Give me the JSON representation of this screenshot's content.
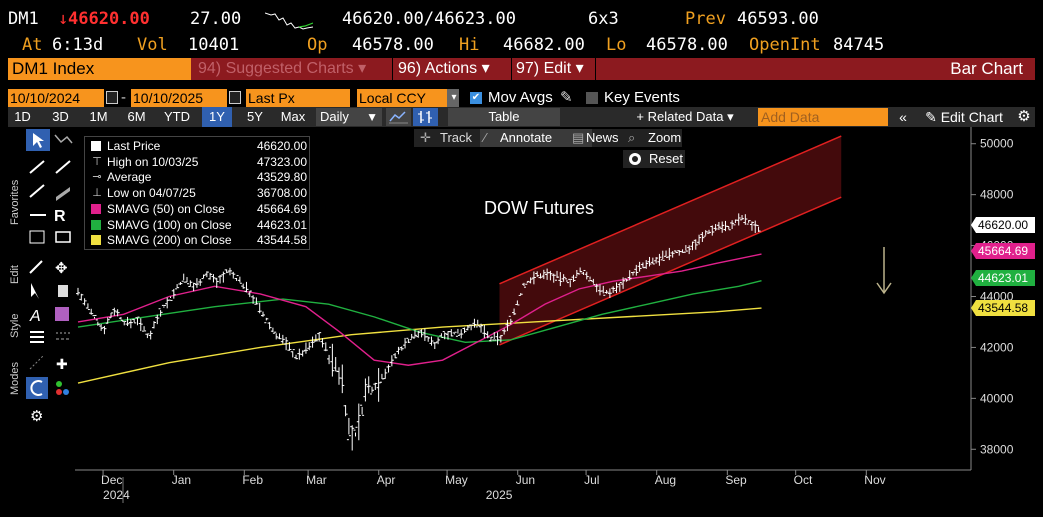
{
  "quote": {
    "ticker": "DM1",
    "last": "46620.00",
    "change": "27.00",
    "bid_ask": "46620.00/46623.00",
    "size": "6x3",
    "prev_label": "Prev",
    "prev": "46593.00",
    "at_label": "At",
    "time": "6:13d",
    "vol_label": "Vol",
    "vol": "10401",
    "op_label": "Op",
    "open": "46578.00",
    "hi_label": "Hi",
    "high": "46682.00",
    "lo_label": "Lo",
    "low": "46578.00",
    "oi_label": "OpenInt",
    "open_int": "84745"
  },
  "titlebar": {
    "security": "DM1 Index",
    "suggested": "94) Suggested Charts",
    "actions": "96) Actions",
    "edit": "97) Edit",
    "chart_type": "Bar Chart"
  },
  "range": {
    "start": "10/10/2024",
    "end": "10/10/2025",
    "field": "Last Px",
    "currency": "Local CCY",
    "mov_avgs": "Mov Avgs",
    "key_events": "Key Events"
  },
  "toolbar": {
    "periods": [
      "1D",
      "3D",
      "1M",
      "6M",
      "YTD",
      "1Y",
      "5Y",
      "Max"
    ],
    "selected_period": "1Y",
    "frequency": "Daily",
    "table": "Table",
    "related": "Related Data",
    "add_data_placeholder": "Add Data",
    "edit_chart": "Edit Chart"
  },
  "chart_tools": {
    "track": "Track",
    "annotate": "Annotate",
    "news": "News",
    "zoom": "Zoom",
    "reset": "Reset"
  },
  "side_tabs": {
    "favorites": "Favorites",
    "edit": "Edit",
    "style": "Style",
    "modes": "Modes"
  },
  "legend": [
    {
      "name": "Last Price",
      "value": "46620.00",
      "color": "#ffffff",
      "kind": "box"
    },
    {
      "name": "High on 10/03/25",
      "value": "47323.00",
      "color": "#cccccc",
      "kind": "high"
    },
    {
      "name": "Average",
      "value": "43529.80",
      "color": "#cccccc",
      "kind": "avg"
    },
    {
      "name": "Low on 04/07/25",
      "value": "36708.00",
      "color": "#cccccc",
      "kind": "low"
    },
    {
      "name": "SMAVG (50)  on Close",
      "value": "45664.69",
      "color": "#e0208c",
      "kind": "box"
    },
    {
      "name": "SMAVG (100)  on Close",
      "value": "44623.01",
      "color": "#20b040",
      "kind": "box"
    },
    {
      "name": "SMAVG (200)  on Close",
      "value": "43544.58",
      "color": "#f0e040",
      "kind": "box"
    }
  ],
  "chart_data": {
    "type": "line",
    "annotation": "DOW Futures",
    "ylim": [
      37500,
      50500
    ],
    "y_ticks": [
      "50000",
      "48000",
      "46000",
      "44000",
      "42000",
      "40000",
      "38000"
    ],
    "x_ticks": [
      "Dec",
      "Jan",
      "Feb",
      "Mar",
      "Apr",
      "May",
      "Jun",
      "Jul",
      "Aug",
      "Sep",
      "Oct",
      "Nov"
    ],
    "x_year_labels": [
      "2024",
      "2025"
    ],
    "price_tags": [
      {
        "value": "46620.00",
        "color": "#ffffff",
        "text_color": "#000000"
      },
      {
        "value": "45664.69",
        "color": "#e0208c",
        "text_color": "#ffffff"
      },
      {
        "value": "44623.01",
        "color": "#20b040",
        "text_color": "#ffffff"
      },
      {
        "value": "43544.58",
        "color": "#f0e040",
        "text_color": "#000000"
      }
    ],
    "price": [
      [
        0,
        44200
      ],
      [
        6,
        43300
      ],
      [
        11,
        42700
      ],
      [
        16,
        43500
      ],
      [
        21,
        42900
      ],
      [
        26,
        43100
      ],
      [
        31,
        42400
      ],
      [
        36,
        43400
      ],
      [
        41,
        44000
      ],
      [
        46,
        44700
      ],
      [
        51,
        44400
      ],
      [
        56,
        44900
      ],
      [
        61,
        44600
      ],
      [
        66,
        45000
      ],
      [
        71,
        44600
      ],
      [
        76,
        44100
      ],
      [
        81,
        43300
      ],
      [
        86,
        42600
      ],
      [
        91,
        42200
      ],
      [
        96,
        41600
      ],
      [
        101,
        42000
      ],
      [
        106,
        42500
      ],
      [
        111,
        41500
      ],
      [
        116,
        40800
      ],
      [
        119,
        38600
      ],
      [
        122,
        38500
      ],
      [
        126,
        40200
      ],
      [
        131,
        40600
      ],
      [
        136,
        41200
      ],
      [
        141,
        41900
      ],
      [
        146,
        42400
      ],
      [
        151,
        42600
      ],
      [
        156,
        42100
      ],
      [
        161,
        42600
      ],
      [
        166,
        42500
      ],
      [
        171,
        42800
      ],
      [
        176,
        42900
      ],
      [
        181,
        42300
      ],
      [
        186,
        42400
      ],
      [
        191,
        43300
      ],
      [
        196,
        44500
      ],
      [
        201,
        44800
      ],
      [
        206,
        44900
      ],
      [
        211,
        44700
      ],
      [
        216,
        44600
      ],
      [
        221,
        45000
      ],
      [
        226,
        44600
      ],
      [
        231,
        44100
      ],
      [
        236,
        44300
      ],
      [
        241,
        44700
      ],
      [
        246,
        45100
      ],
      [
        251,
        45300
      ],
      [
        256,
        45500
      ],
      [
        261,
        45700
      ],
      [
        266,
        45800
      ],
      [
        271,
        46100
      ],
      [
        276,
        46500
      ],
      [
        281,
        46800
      ],
      [
        286,
        46700
      ],
      [
        291,
        47100
      ],
      [
        296,
        46800
      ],
      [
        300,
        46620
      ]
    ],
    "sma50": [
      [
        0,
        43000
      ],
      [
        20,
        43300
      ],
      [
        40,
        44000
      ],
      [
        60,
        44400
      ],
      [
        80,
        44100
      ],
      [
        100,
        43600
      ],
      [
        115,
        42600
      ],
      [
        130,
        41500
      ],
      [
        145,
        41300
      ],
      [
        160,
        41500
      ],
      [
        175,
        42200
      ],
      [
        190,
        42900
      ],
      [
        205,
        43700
      ],
      [
        220,
        44300
      ],
      [
        235,
        44600
      ],
      [
        250,
        44800
      ],
      [
        265,
        45000
      ],
      [
        280,
        45300
      ],
      [
        300,
        45665
      ]
    ],
    "sma100": [
      [
        0,
        42800
      ],
      [
        30,
        43200
      ],
      [
        60,
        43600
      ],
      [
        90,
        43900
      ],
      [
        110,
        43700
      ],
      [
        130,
        43200
      ],
      [
        150,
        42600
      ],
      [
        170,
        42200
      ],
      [
        190,
        42300
      ],
      [
        210,
        42800
      ],
      [
        230,
        43300
      ],
      [
        250,
        43700
      ],
      [
        270,
        44100
      ],
      [
        290,
        44400
      ],
      [
        300,
        44623
      ]
    ],
    "sma200": [
      [
        0,
        40600
      ],
      [
        40,
        41400
      ],
      [
        80,
        42000
      ],
      [
        120,
        42500
      ],
      [
        160,
        42800
      ],
      [
        200,
        43000
      ],
      [
        240,
        43200
      ],
      [
        280,
        43400
      ],
      [
        300,
        43545
      ]
    ],
    "channel_upper": [
      [
        185,
        44500
      ],
      [
        335,
        50300
      ]
    ],
    "channel_lower": [
      [
        185,
        42100
      ],
      [
        335,
        47900
      ]
    ]
  }
}
